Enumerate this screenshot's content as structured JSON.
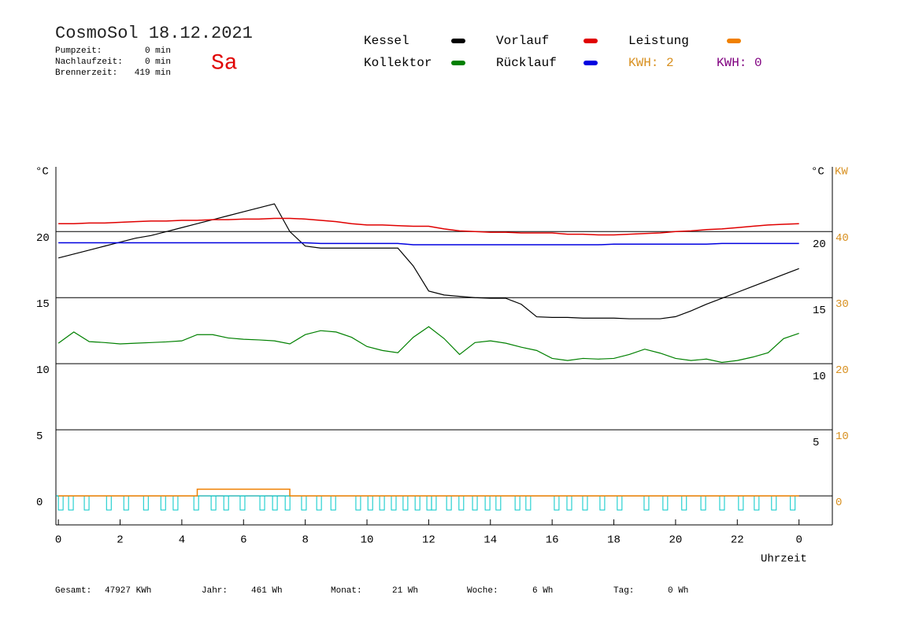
{
  "chart_data": {
    "type": "line",
    "title": "CosmoSol 18.12.2021",
    "day": "Sa",
    "stats": [
      {
        "label": "Pumpzeit:",
        "value": "0 min"
      },
      {
        "label": "Nachlaufzeit:",
        "value": "0 min"
      },
      {
        "label": "Brennerzeit:",
        "value": "419 min"
      }
    ],
    "ylabel": "°C",
    "y2label_left": "°C",
    "y2label": "KW",
    "xlabel": "Uhrzeit",
    "kwh": [
      {
        "text": "KWH: 2",
        "color": "#d89020"
      },
      {
        "text": "KWH: 0",
        "color": "#800080"
      }
    ],
    "x": [
      0,
      0.5,
      1,
      1.5,
      2,
      2.5,
      3,
      3.5,
      4,
      4.5,
      5,
      5.5,
      6,
      6.5,
      7,
      7.5,
      8,
      8.5,
      9,
      9.5,
      10,
      10.5,
      11,
      11.5,
      12,
      12.5,
      13,
      13.5,
      14,
      14.5,
      15,
      15.5,
      16,
      16.5,
      17,
      17.5,
      18,
      18.5,
      19,
      19.5,
      20,
      20.5,
      21,
      21.5,
      22,
      22.5,
      23,
      23.5,
      24
    ],
    "xlim": [
      -0.08,
      25.08
    ],
    "xticks": [
      0,
      2,
      4,
      6,
      8,
      10,
      12,
      14,
      16,
      18,
      20,
      22,
      {
        "value": 24,
        "label": "0"
      }
    ],
    "ylim": [
      -2.2,
      24.9
    ],
    "yticks": [
      0,
      5,
      10,
      15,
      20
    ],
    "y2lim": [
      -4.4,
      49.8
    ],
    "y2ticks": [
      0,
      10,
      20,
      30,
      40
    ],
    "grid": true,
    "series": [
      {
        "name": "Kessel",
        "color": "#000000",
        "values": [
          18.0,
          18.3,
          18.6,
          18.9,
          19.2,
          19.5,
          19.7,
          20.0,
          20.3,
          20.6,
          20.9,
          21.2,
          21.5,
          21.8,
          22.1,
          20.0,
          18.9,
          18.75,
          18.75,
          18.75,
          18.75,
          18.75,
          18.75,
          17.4,
          15.5,
          15.2,
          15.1,
          15.0,
          14.95,
          14.95,
          14.5,
          13.55,
          13.5,
          13.5,
          13.45,
          13.45,
          13.45,
          13.4,
          13.4,
          13.4,
          13.56,
          14.0,
          14.5,
          14.95,
          15.4,
          15.85,
          16.3,
          16.75,
          17.2
        ]
      },
      {
        "name": "Kollektor",
        "color": "#008000",
        "values": [
          11.55,
          12.4,
          11.67,
          11.6,
          11.5,
          11.55,
          11.6,
          11.65,
          11.73,
          12.2,
          12.2,
          11.95,
          11.85,
          11.8,
          11.73,
          11.5,
          12.2,
          12.5,
          12.4,
          12.0,
          11.3,
          11.0,
          10.83,
          12.0,
          12.8,
          11.9,
          10.7,
          11.6,
          11.73,
          11.55,
          11.25,
          11.0,
          10.4,
          10.24,
          10.4,
          10.35,
          10.4,
          10.7,
          11.1,
          10.8,
          10.4,
          10.24,
          10.35,
          10.1,
          10.24,
          10.5,
          10.83,
          11.9,
          12.3
        ]
      },
      {
        "name": "Vorlauf",
        "color": "#e00000",
        "values": [
          20.6,
          20.6,
          20.65,
          20.65,
          20.7,
          20.75,
          20.8,
          20.8,
          20.85,
          20.85,
          20.9,
          20.9,
          20.95,
          20.95,
          21.0,
          21.0,
          20.95,
          20.85,
          20.75,
          20.6,
          20.5,
          20.5,
          20.45,
          20.4,
          20.4,
          20.2,
          20.05,
          20.0,
          19.95,
          19.95,
          19.9,
          19.9,
          19.9,
          19.8,
          19.8,
          19.75,
          19.75,
          19.8,
          19.85,
          19.9,
          20.0,
          20.05,
          20.15,
          20.2,
          20.3,
          20.4,
          20.5,
          20.55,
          20.6
        ]
      },
      {
        "name": "Rücklauf",
        "color": "#0000e0",
        "values": [
          19.15,
          19.15,
          19.15,
          19.15,
          19.15,
          19.15,
          19.15,
          19.15,
          19.15,
          19.15,
          19.15,
          19.15,
          19.15,
          19.15,
          19.15,
          19.15,
          19.15,
          19.1,
          19.1,
          19.1,
          19.1,
          19.1,
          19.1,
          19.0,
          19.0,
          19.0,
          19.0,
          19.0,
          19.0,
          19.0,
          19.0,
          19.0,
          19.0,
          19.0,
          19.0,
          19.0,
          19.05,
          19.05,
          19.05,
          19.05,
          19.05,
          19.05,
          19.05,
          19.1,
          19.1,
          19.1,
          19.1,
          19.1,
          19.1
        ]
      },
      {
        "name": "Leistung",
        "color": "#f08000",
        "axis": "y2",
        "step": true,
        "values": [
          0,
          0,
          0,
          0,
          0,
          0,
          0,
          0,
          0,
          1,
          1,
          1,
          1,
          1,
          1,
          0,
          0,
          0,
          0,
          0,
          0,
          0,
          0,
          0,
          0,
          0,
          0,
          0,
          0,
          0,
          0,
          0,
          0,
          0,
          0,
          0,
          0,
          0,
          0,
          0,
          0,
          0,
          0,
          0,
          0,
          0,
          0,
          0,
          0
        ]
      }
    ],
    "pump": {
      "color": "#00c8c8",
      "starts": [
        0,
        0.33,
        0.84,
        1.56,
        2.12,
        2.76,
        3.32,
        3.72,
        4.39,
        4.95,
        5.36,
        5.89,
        6.53,
        6.94,
        7.35,
        7.88,
        8.37,
        8.83,
        9.64,
        10.03,
        10.41,
        10.79,
        11.17,
        11.56,
        11.94,
        12.09,
        12.58,
        12.98,
        13.42,
        13.83,
        14.18,
        14.8,
        15.15,
        16.07,
        16.48,
        16.99,
        17.55,
        18.11,
        18.98,
        19.59,
        20.2,
        20.82,
        21.43,
        22.04,
        22.55,
        23.11,
        23.72
      ]
    },
    "totals": [
      {
        "label": "Gesamt:",
        "value": "47927 KWh"
      },
      {
        "label": "Jahr:",
        "value": "461 Wh"
      },
      {
        "label": "Monat:",
        "value": "21 Wh"
      },
      {
        "label": "Woche:",
        "value": "6 Wh"
      },
      {
        "label": "Tag:",
        "value": "0 Wh"
      }
    ]
  }
}
